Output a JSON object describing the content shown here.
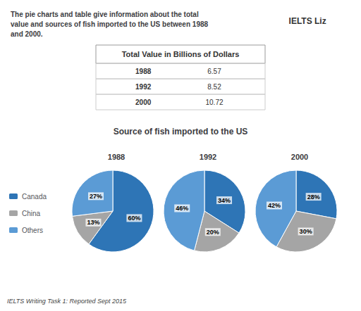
{
  "title": "The pie charts and table give information about the total\nvalue and sources of fish imported to the US between 1988\nand 2000.",
  "subtitle": "Source of fish imported to the US",
  "annotations": [
    "IELTS ",
    "Liz",
    "IELTS Writing Task 1: Reported Sept 2015"
  ],
  "table": {
    "title": "Total Value in Billions of Dollars",
    "rows": [
      [
        "1988",
        6.57
      ],
      [
        "1992",
        8.52
      ],
      [
        "2000",
        10.72
      ]
    ]
  },
  "chart_data": [
    {
      "type": "pie",
      "title": "1988",
      "categories": [
        "Canada",
        "China",
        "Others"
      ],
      "values": [
        60,
        13,
        27
      ],
      "value_labels": [
        "60%",
        "13%",
        "27%"
      ],
      "colors": [
        "#2e75b6",
        "#a5a5a5",
        "#5b9bd5"
      ],
      "data_labels": true,
      "legend": "left"
    },
    {
      "type": "pie",
      "title": "1992",
      "categories": [
        "Canada",
        "China",
        "Others"
      ],
      "values": [
        34,
        20,
        46
      ],
      "value_labels": [
        "34%",
        "20%",
        "46%"
      ],
      "colors": [
        "#2e75b6",
        "#a5a5a5",
        "#5b9bd5"
      ],
      "data_labels": true,
      "legend": "left"
    },
    {
      "type": "pie",
      "title": "2000",
      "categories": [
        "Canada",
        "China",
        "Others"
      ],
      "values": [
        28,
        30,
        42
      ],
      "value_labels": [
        "28%",
        "30%",
        "42%"
      ],
      "colors": [
        "#2e75b6",
        "#a5a5a5",
        "#5b9bd5"
      ],
      "data_labels": true,
      "legend": "left"
    }
  ]
}
